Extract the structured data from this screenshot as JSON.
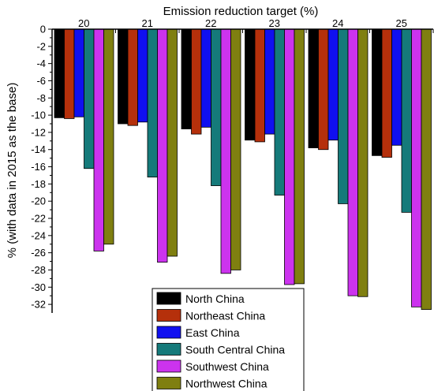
{
  "chart_data": {
    "type": "bar",
    "orientation": "vertical-downward",
    "title": "",
    "xlabel": "Emission reduction target (%)",
    "xaxis_position": "top",
    "ylabel": "% (with data in 2015 as the base)",
    "ylim": [
      -33,
      0
    ],
    "yticks": [
      0,
      -2,
      -4,
      -6,
      -8,
      -10,
      -12,
      -14,
      -16,
      -18,
      -20,
      -22,
      -24,
      -26,
      -28,
      -30,
      -32
    ],
    "categories": [
      "20",
      "21",
      "22",
      "23",
      "24",
      "25"
    ],
    "series": [
      {
        "name": "North China",
        "color": "#000000",
        "values": [
          -10.3,
          -11.0,
          -11.6,
          -12.9,
          -13.8,
          -14.7
        ]
      },
      {
        "name": "Northeast China",
        "color": "#b5300b",
        "values": [
          -10.4,
          -11.2,
          -12.2,
          -13.1,
          -14.0,
          -14.9
        ]
      },
      {
        "name": "East China",
        "color": "#1010f0",
        "values": [
          -10.2,
          -10.8,
          -11.4,
          -12.2,
          -12.9,
          -13.5
        ]
      },
      {
        "name": "South Central China",
        "color": "#157a7a",
        "values": [
          -16.2,
          -17.2,
          -18.2,
          -19.3,
          -20.3,
          -21.3
        ]
      },
      {
        "name": "Southwest China",
        "color": "#cc33ee",
        "values": [
          -25.8,
          -27.1,
          -28.4,
          -29.7,
          -31.0,
          -32.3
        ]
      },
      {
        "name": "Northwest China",
        "color": "#7f7f10",
        "values": [
          -25.0,
          -26.4,
          -28.0,
          -29.6,
          -31.1,
          -32.6
        ]
      }
    ],
    "grid": false,
    "legend_position": "bottom-center"
  }
}
